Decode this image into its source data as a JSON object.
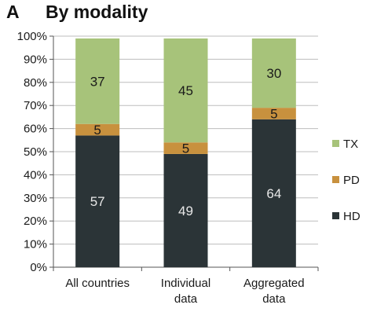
{
  "panel_letter": "A",
  "chart_data": {
    "type": "bar",
    "stacked": true,
    "title": "By modality",
    "xlabel": "",
    "ylabel": "",
    "categories": [
      "All countries",
      "Individual data",
      "Aggregated data"
    ],
    "series": [
      {
        "name": "HD",
        "values": [
          57,
          49,
          64
        ],
        "color": "#2b3437",
        "label_color": "#e8e8e8"
      },
      {
        "name": "PD",
        "values": [
          5,
          5,
          5
        ],
        "color": "#c8913e",
        "label_color": "#1a1a1a"
      },
      {
        "name": "TX",
        "values": [
          37,
          45,
          30
        ],
        "color": "#a7c37a",
        "label_color": "#1a1a1a"
      }
    ],
    "ylim": [
      0,
      100
    ],
    "yticks": [
      0,
      10,
      20,
      30,
      40,
      50,
      60,
      70,
      80,
      90,
      100
    ],
    "ytick_format": "percent",
    "grid": true,
    "legend": {
      "position": "right",
      "order": [
        "TX",
        "PD",
        "HD"
      ]
    }
  }
}
